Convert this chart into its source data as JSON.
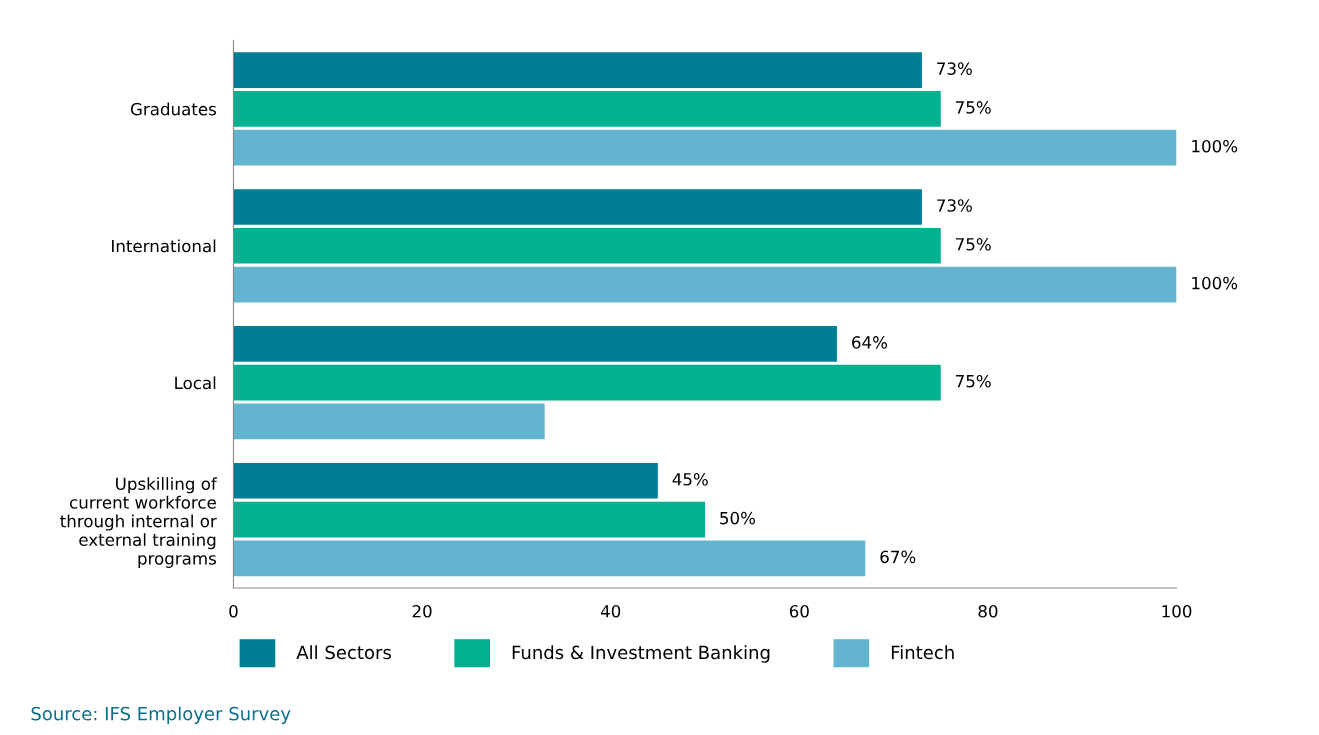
{
  "chart_data": {
    "type": "bar",
    "orientation": "horizontal",
    "categories": [
      "Graduates",
      "International",
      "Local",
      "Upskilling of\ncurrent workforce\nthrough internal or\nexternal training\nprograms"
    ],
    "series": [
      {
        "name": "All Sectors",
        "color": "#007f94",
        "values": [
          73,
          73,
          64,
          45
        ],
        "value_labels": [
          "73%",
          "73%",
          "64%",
          "45%"
        ]
      },
      {
        "name": "Funds & Investment Banking",
        "color": "#00b08f",
        "values": [
          75,
          75,
          75,
          50
        ],
        "value_labels": [
          "75%",
          "75%",
          "75%",
          "50%"
        ]
      },
      {
        "name": "Fintech",
        "color": "#63b5cf",
        "values": [
          100,
          100,
          33,
          67
        ],
        "value_labels": [
          "100%",
          "100%",
          null,
          "67%"
        ]
      }
    ],
    "xlim": [
      0,
      100
    ],
    "xticks": [
      0,
      20,
      40,
      60,
      80,
      100
    ],
    "grid": false,
    "legend": "bottom",
    "annotations": [
      "Source: IFS Employer Survey"
    ]
  }
}
